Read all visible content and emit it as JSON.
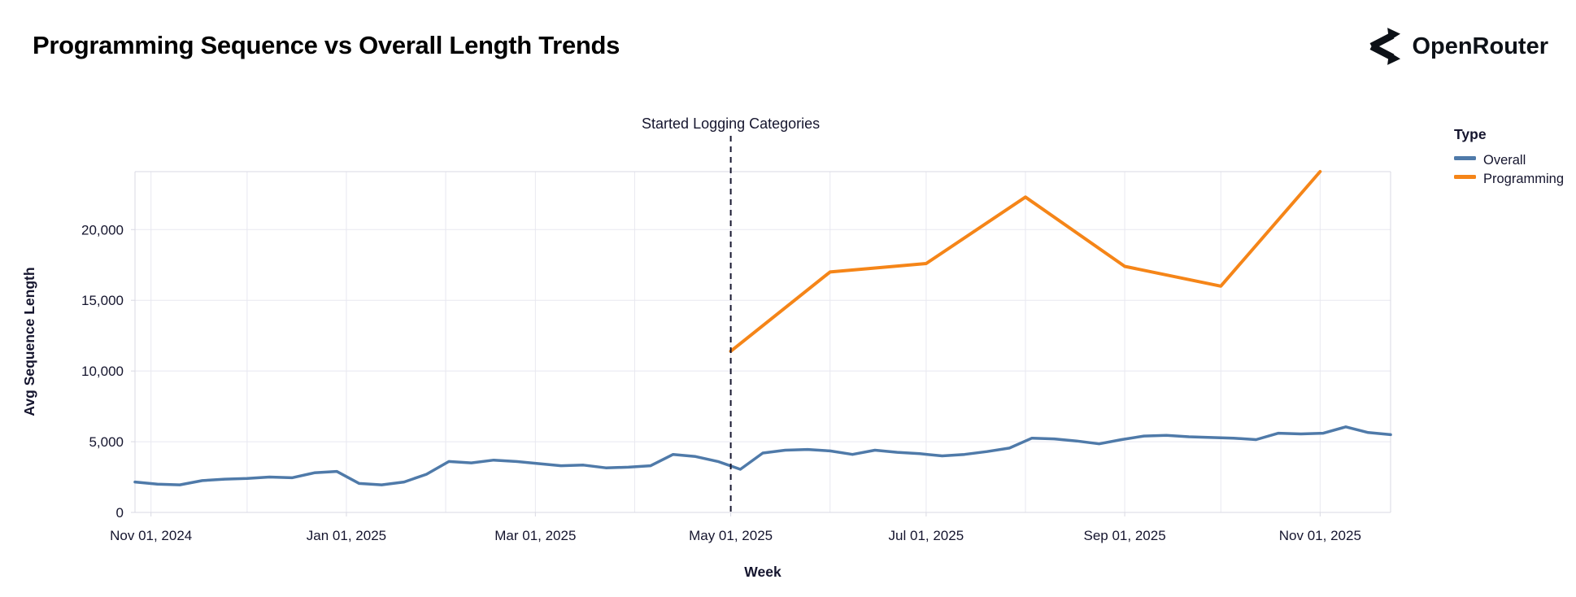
{
  "page": {
    "title": "Programming Sequence vs Overall Length Trends",
    "brand": "OpenRouter"
  },
  "chart_data": {
    "type": "line",
    "title": "Programming Sequence vs Overall Length Trends",
    "xlabel": "Week",
    "ylabel": "Avg Sequence Length",
    "x_domain": [
      "2024-10-27",
      "2025-11-23"
    ],
    "ylim": [
      0,
      24100
    ],
    "grid": true,
    "colors": {
      "overall": "#4f7aa9",
      "programming": "#f58518",
      "gridline": "#e8e8f0",
      "border": "#d9d9e3",
      "text": "#15152e",
      "annotation_line": "#17172f"
    },
    "x_ticks": [
      {
        "date": "2024-11-01",
        "label": "Nov 01, 2024"
      },
      {
        "date": "2025-01-01",
        "label": "Jan 01, 2025"
      },
      {
        "date": "2025-03-01",
        "label": "Mar 01, 2025"
      },
      {
        "date": "2025-05-01",
        "label": "May 01, 2025"
      },
      {
        "date": "2025-07-01",
        "label": "Jul 01, 2025"
      },
      {
        "date": "2025-09-01",
        "label": "Sep 01, 2025"
      },
      {
        "date": "2025-11-01",
        "label": "Nov 01, 2025"
      }
    ],
    "y_ticks": [
      {
        "value": 0,
        "label": "0"
      },
      {
        "value": 5000,
        "label": "5,000"
      },
      {
        "value": 10000,
        "label": "10,000"
      },
      {
        "value": 15000,
        "label": "15,000"
      },
      {
        "value": 20000,
        "label": "20,000"
      }
    ],
    "annotation": {
      "date": "2025-05-01",
      "label": "Started Logging Categories"
    },
    "legend": {
      "title": "Type",
      "position": "right"
    },
    "series": [
      {
        "name": "Overall",
        "color": "#4f7aa9",
        "points": [
          {
            "date": "2024-10-27",
            "value": 2150
          },
          {
            "date": "2024-11-03",
            "value": 2000
          },
          {
            "date": "2024-11-10",
            "value": 1950
          },
          {
            "date": "2024-11-17",
            "value": 2250
          },
          {
            "date": "2024-11-24",
            "value": 2350
          },
          {
            "date": "2024-12-01",
            "value": 2400
          },
          {
            "date": "2024-12-08",
            "value": 2500
          },
          {
            "date": "2024-12-15",
            "value": 2450
          },
          {
            "date": "2024-12-22",
            "value": 2800
          },
          {
            "date": "2024-12-29",
            "value": 2900
          },
          {
            "date": "2025-01-05",
            "value": 2050
          },
          {
            "date": "2025-01-12",
            "value": 1950
          },
          {
            "date": "2025-01-19",
            "value": 2150
          },
          {
            "date": "2025-01-26",
            "value": 2700
          },
          {
            "date": "2025-02-02",
            "value": 3600
          },
          {
            "date": "2025-02-09",
            "value": 3500
          },
          {
            "date": "2025-02-16",
            "value": 3700
          },
          {
            "date": "2025-02-23",
            "value": 3600
          },
          {
            "date": "2025-03-02",
            "value": 3450
          },
          {
            "date": "2025-03-09",
            "value": 3300
          },
          {
            "date": "2025-03-16",
            "value": 3350
          },
          {
            "date": "2025-03-23",
            "value": 3150
          },
          {
            "date": "2025-03-30",
            "value": 3200
          },
          {
            "date": "2025-04-06",
            "value": 3300
          },
          {
            "date": "2025-04-13",
            "value": 4100
          },
          {
            "date": "2025-04-20",
            "value": 3950
          },
          {
            "date": "2025-04-27",
            "value": 3600
          },
          {
            "date": "2025-05-04",
            "value": 3050
          },
          {
            "date": "2025-05-11",
            "value": 4200
          },
          {
            "date": "2025-05-18",
            "value": 4400
          },
          {
            "date": "2025-05-25",
            "value": 4450
          },
          {
            "date": "2025-06-01",
            "value": 4350
          },
          {
            "date": "2025-06-08",
            "value": 4100
          },
          {
            "date": "2025-06-15",
            "value": 4400
          },
          {
            "date": "2025-06-22",
            "value": 4250
          },
          {
            "date": "2025-06-29",
            "value": 4150
          },
          {
            "date": "2025-07-06",
            "value": 4000
          },
          {
            "date": "2025-07-13",
            "value": 4100
          },
          {
            "date": "2025-07-20",
            "value": 4300
          },
          {
            "date": "2025-07-27",
            "value": 4550
          },
          {
            "date": "2025-08-03",
            "value": 5250
          },
          {
            "date": "2025-08-10",
            "value": 5200
          },
          {
            "date": "2025-08-17",
            "value": 5050
          },
          {
            "date": "2025-08-24",
            "value": 4850
          },
          {
            "date": "2025-08-31",
            "value": 5150
          },
          {
            "date": "2025-09-07",
            "value": 5400
          },
          {
            "date": "2025-09-14",
            "value": 5450
          },
          {
            "date": "2025-09-21",
            "value": 5350
          },
          {
            "date": "2025-09-28",
            "value": 5300
          },
          {
            "date": "2025-10-05",
            "value": 5250
          },
          {
            "date": "2025-10-12",
            "value": 5150
          },
          {
            "date": "2025-10-19",
            "value": 5600
          },
          {
            "date": "2025-10-26",
            "value": 5550
          },
          {
            "date": "2025-11-02",
            "value": 5600
          },
          {
            "date": "2025-11-09",
            "value": 6050
          },
          {
            "date": "2025-11-16",
            "value": 5650
          },
          {
            "date": "2025-11-23",
            "value": 5500
          }
        ]
      },
      {
        "name": "Programming",
        "color": "#f58518",
        "points": [
          {
            "date": "2025-05-01",
            "value": 11400
          },
          {
            "date": "2025-06-01",
            "value": 17000
          },
          {
            "date": "2025-07-01",
            "value": 17600
          },
          {
            "date": "2025-08-01",
            "value": 22300
          },
          {
            "date": "2025-09-01",
            "value": 17400
          },
          {
            "date": "2025-10-01",
            "value": 16000
          },
          {
            "date": "2025-11-01",
            "value": 24100
          }
        ]
      }
    ]
  }
}
